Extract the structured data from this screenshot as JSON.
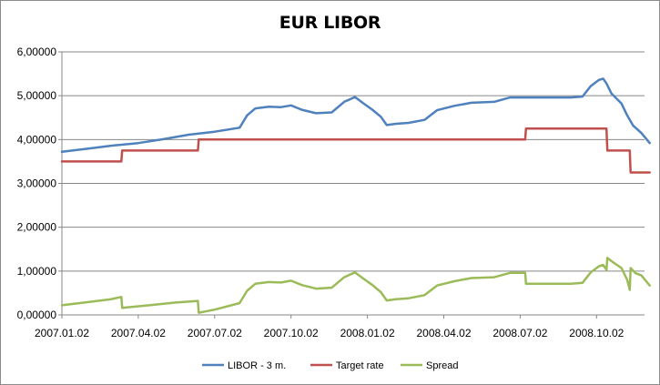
{
  "chart_data": {
    "type": "line",
    "title": "EUR LIBOR",
    "xlabel": "",
    "ylabel": "",
    "ylim": [
      0,
      6
    ],
    "yticks": [
      "0,00000",
      "1,00000",
      "2,00000",
      "3,00000",
      "4,00000",
      "5,00000",
      "6,00000"
    ],
    "xticks": [
      "2007.01.02",
      "2007.04.02",
      "2007.07.02",
      "2007.10.02",
      "2008.01.02",
      "2008.04.02",
      "2008.07.02",
      "2008.10.02"
    ],
    "xlim": [
      "2007.01.02",
      "2008.12.05"
    ],
    "grid": "horizontal",
    "legend_position": "bottom",
    "colors": {
      "libor": "#4f81bd",
      "target": "#c0504d",
      "spread": "#9bbb59"
    },
    "series": [
      {
        "name": "LIBOR - 3 m.",
        "points": [
          [
            "2007.01.02",
            3.72
          ],
          [
            "2007.02.01",
            3.79
          ],
          [
            "2007.03.01",
            3.86
          ],
          [
            "2007.04.02",
            3.92
          ],
          [
            "2007.05.02",
            4.01
          ],
          [
            "2007.06.01",
            4.11
          ],
          [
            "2007.07.02",
            4.18
          ],
          [
            "2007.08.01",
            4.27
          ],
          [
            "2007.08.10",
            4.55
          ],
          [
            "2007.08.20",
            4.71
          ],
          [
            "2007.09.05",
            4.75
          ],
          [
            "2007.09.20",
            4.74
          ],
          [
            "2007.10.02",
            4.78
          ],
          [
            "2007.10.15",
            4.68
          ],
          [
            "2007.11.01",
            4.6
          ],
          [
            "2007.11.20",
            4.62
          ],
          [
            "2007.12.05",
            4.86
          ],
          [
            "2007.12.18",
            4.97
          ],
          [
            "2007.12.28",
            4.83
          ],
          [
            "2008.01.08",
            4.68
          ],
          [
            "2008.01.18",
            4.52
          ],
          [
            "2008.01.25",
            4.33
          ],
          [
            "2008.02.05",
            4.36
          ],
          [
            "2008.02.20",
            4.38
          ],
          [
            "2008.03.10",
            4.45
          ],
          [
            "2008.03.25",
            4.67
          ],
          [
            "2008.04.15",
            4.77
          ],
          [
            "2008.05.05",
            4.84
          ],
          [
            "2008.06.01",
            4.86
          ],
          [
            "2008.06.20",
            4.96
          ],
          [
            "2008.07.02",
            4.96
          ],
          [
            "2008.08.01",
            4.96
          ],
          [
            "2008.09.01",
            4.96
          ],
          [
            "2008.09.15",
            4.98
          ],
          [
            "2008.09.25",
            5.22
          ],
          [
            "2008.10.05",
            5.36
          ],
          [
            "2008.10.10",
            5.39
          ],
          [
            "2008.10.14",
            5.28
          ],
          [
            "2008.10.20",
            5.05
          ],
          [
            "2008.11.01",
            4.82
          ],
          [
            "2008.11.08",
            4.55
          ],
          [
            "2008.11.15",
            4.32
          ],
          [
            "2008.11.25",
            4.15
          ],
          [
            "2008.12.05",
            3.92
          ]
        ]
      },
      {
        "name": "Target rate",
        "points": [
          [
            "2007.01.02",
            3.5
          ],
          [
            "2007.03.13",
            3.5
          ],
          [
            "2007.03.14",
            3.75
          ],
          [
            "2007.06.12",
            3.75
          ],
          [
            "2007.06.13",
            4.0
          ],
          [
            "2008.07.08",
            4.0
          ],
          [
            "2008.07.09",
            4.25
          ],
          [
            "2008.10.14",
            4.25
          ],
          [
            "2008.10.15",
            3.75
          ],
          [
            "2008.11.11",
            3.75
          ],
          [
            "2008.11.12",
            3.25
          ],
          [
            "2008.12.05",
            3.25
          ]
        ]
      },
      {
        "name": "Spread",
        "points": [
          [
            "2007.01.02",
            0.22
          ],
          [
            "2007.02.01",
            0.29
          ],
          [
            "2007.03.01",
            0.36
          ],
          [
            "2007.03.13",
            0.41
          ],
          [
            "2007.03.14",
            0.16
          ],
          [
            "2007.04.15",
            0.22
          ],
          [
            "2007.05.15",
            0.28
          ],
          [
            "2007.06.12",
            0.32
          ],
          [
            "2007.06.13",
            0.05
          ],
          [
            "2007.07.02",
            0.12
          ],
          [
            "2007.08.01",
            0.27
          ],
          [
            "2007.08.10",
            0.55
          ],
          [
            "2007.08.20",
            0.71
          ],
          [
            "2007.09.05",
            0.75
          ],
          [
            "2007.09.20",
            0.74
          ],
          [
            "2007.10.02",
            0.78
          ],
          [
            "2007.10.15",
            0.68
          ],
          [
            "2007.11.01",
            0.6
          ],
          [
            "2007.11.20",
            0.62
          ],
          [
            "2007.12.05",
            0.86
          ],
          [
            "2007.12.18",
            0.97
          ],
          [
            "2007.12.28",
            0.83
          ],
          [
            "2008.01.08",
            0.68
          ],
          [
            "2008.01.18",
            0.52
          ],
          [
            "2008.01.25",
            0.33
          ],
          [
            "2008.02.05",
            0.36
          ],
          [
            "2008.02.20",
            0.38
          ],
          [
            "2008.03.10",
            0.45
          ],
          [
            "2008.03.25",
            0.67
          ],
          [
            "2008.04.15",
            0.77
          ],
          [
            "2008.05.05",
            0.84
          ],
          [
            "2008.06.01",
            0.86
          ],
          [
            "2008.06.20",
            0.96
          ],
          [
            "2008.07.08",
            0.96
          ],
          [
            "2008.07.09",
            0.71
          ],
          [
            "2008.08.01",
            0.71
          ],
          [
            "2008.09.01",
            0.71
          ],
          [
            "2008.09.15",
            0.73
          ],
          [
            "2008.09.25",
            0.97
          ],
          [
            "2008.10.05",
            1.11
          ],
          [
            "2008.10.10",
            1.14
          ],
          [
            "2008.10.14",
            1.03
          ],
          [
            "2008.10.15",
            1.3
          ],
          [
            "2008.10.22",
            1.2
          ],
          [
            "2008.11.01",
            1.07
          ],
          [
            "2008.11.08",
            0.8
          ],
          [
            "2008.11.11",
            0.57
          ],
          [
            "2008.11.12",
            1.07
          ],
          [
            "2008.11.18",
            0.95
          ],
          [
            "2008.11.25",
            0.9
          ],
          [
            "2008.12.05",
            0.67
          ]
        ]
      }
    ]
  }
}
